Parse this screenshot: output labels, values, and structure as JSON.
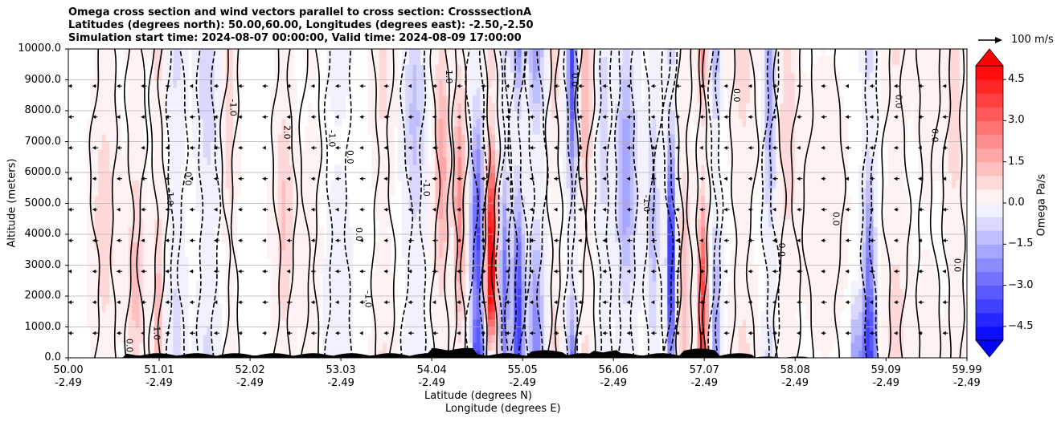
{
  "chart_data": {
    "type": "contour",
    "title_lines": [
      "Omega cross section and wind vectors parallel to cross section: CrosssectionA",
      "Latitudes (degrees north): 50.00,60.00, Longitudes (degrees east): -2.50,-2.50",
      "Simulation start time: 2024-08-07 00:00:00, Valid time: 2024-08-09 17:00:00"
    ],
    "ylabel": "Altitude (meters)",
    "xlabel_lat": "Latitude (degrees N)",
    "xlabel_lon": "Longitude (degrees E)",
    "ylim": [
      0,
      10000
    ],
    "xlim": [
      50.0,
      59.99
    ],
    "yticks": [
      0,
      1000,
      2000,
      3000,
      4000,
      5000,
      6000,
      7000,
      8000,
      9000,
      10000
    ],
    "ytick_labels": [
      "0.0",
      "1000.0",
      "2000.0",
      "3000.0",
      "4000.0",
      "5000.0",
      "6000.0",
      "7000.0",
      "8000.0",
      "9000.0",
      "10000.0"
    ],
    "xticks": [
      50.0,
      51.01,
      52.02,
      53.03,
      54.04,
      55.05,
      56.06,
      57.07,
      58.08,
      59.09,
      59.99
    ],
    "xtick_lat_labels": [
      "50.00",
      "51.01",
      "52.02",
      "53.03",
      "54.04",
      "55.05",
      "56.06",
      "57.07",
      "58.08",
      "59.09",
      "59.99"
    ],
    "xtick_lon_labels": [
      "-2.49",
      "-2.49",
      "-2.49",
      "-2.49",
      "-2.49",
      "-2.49",
      "-2.49",
      "-2.49",
      "-2.49",
      "-2.49",
      "-2.49"
    ],
    "colorbar": {
      "label": "Omega Pa/s",
      "range": [
        -5.0,
        5.0
      ],
      "step": 0.5,
      "ticks": [
        4.5,
        3.0,
        1.5,
        0.0,
        -1.5,
        -3.0,
        -4.5
      ],
      "tick_labels": [
        "4.5",
        "3.0",
        "1.5",
        "0.0",
        "−1.5",
        "−3.0",
        "−4.5"
      ],
      "extend": "both",
      "cmap": "bwr"
    },
    "quiver_key": {
      "label": "100 m/s",
      "speed": 100
    },
    "contour_labels": [
      {
        "text": "0.0",
        "lat": 50.65,
        "alt": 400
      },
      {
        "text": "1.0",
        "lat": 50.95,
        "alt": 800
      },
      {
        "text": "-1.0",
        "lat": 51.1,
        "alt": 5200
      },
      {
        "text": "0.0",
        "lat": 51.3,
        "alt": 5800
      },
      {
        "text": "-1.0",
        "lat": 51.8,
        "alt": 8100
      },
      {
        "text": "2.0",
        "lat": 52.4,
        "alt": 7300
      },
      {
        "text": "-1.0",
        "lat": 52.9,
        "alt": 7100
      },
      {
        "text": "0.0",
        "lat": 53.1,
        "alt": 6500
      },
      {
        "text": "-1.0",
        "lat": 53.3,
        "alt": 1900
      },
      {
        "text": "0.0",
        "lat": 53.2,
        "alt": 4000
      },
      {
        "text": "-1.0",
        "lat": 53.95,
        "alt": 5500
      },
      {
        "text": "1.0",
        "lat": 54.2,
        "alt": 9100
      },
      {
        "text": "0.0",
        "lat": 55.6,
        "alt": 9000
      },
      {
        "text": "-1.0",
        "lat": 56.4,
        "alt": 5000
      },
      {
        "text": "0.0",
        "lat": 57.4,
        "alt": 8500
      },
      {
        "text": "0.0",
        "lat": 57.9,
        "alt": 3500
      },
      {
        "text": "0.0",
        "lat": 58.5,
        "alt": 4500
      },
      {
        "text": "0.0",
        "lat": 59.2,
        "alt": 8300
      },
      {
        "text": "0.0",
        "lat": 59.6,
        "alt": 7200
      },
      {
        "text": "0.0",
        "lat": 59.85,
        "alt": 3000
      }
    ]
  }
}
